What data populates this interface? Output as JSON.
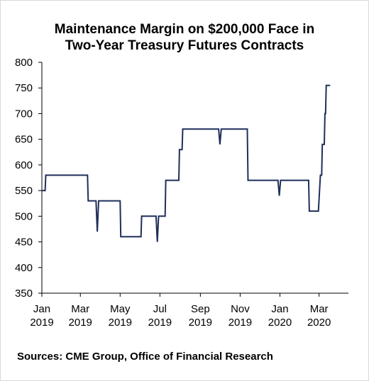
{
  "title_lines": [
    "Maintenance Margin on $200,000 Face in",
    "Two-Year Treasury Futures Contracts"
  ],
  "source_text": "Sources: CME Group, Office of Financial Research",
  "colors": {
    "line": "#1f2f5a",
    "axis": "#000000",
    "background": "#ffffff"
  },
  "chart_data": {
    "type": "line",
    "title": "Maintenance Margin on $200,000 Face in Two-Year Treasury Futures Contracts",
    "xlabel": "",
    "ylabel": "",
    "xlim": [
      "2019-01-01",
      "2020-04-15"
    ],
    "ylim": [
      350,
      800
    ],
    "grid": false,
    "legend": "none",
    "yticks": [
      350,
      400,
      450,
      500,
      550,
      600,
      650,
      700,
      750,
      800
    ],
    "xticks": [
      {
        "date": "2019-01-01",
        "line1": "Jan",
        "line2": "2019"
      },
      {
        "date": "2019-03-01",
        "line1": "Mar",
        "line2": "2019"
      },
      {
        "date": "2019-05-01",
        "line1": "May",
        "line2": "2019"
      },
      {
        "date": "2019-07-01",
        "line1": "Jul",
        "line2": "2019"
      },
      {
        "date": "2019-09-01",
        "line1": "Sep",
        "line2": "2019"
      },
      {
        "date": "2019-11-01",
        "line1": "Nov",
        "line2": "2019"
      },
      {
        "date": "2020-01-01",
        "line1": "Jan",
        "line2": "2020"
      },
      {
        "date": "2020-03-01",
        "line1": "Mar",
        "line2": "2020"
      }
    ],
    "series": [
      {
        "points": [
          [
            "2019-01-01",
            550
          ],
          [
            "2019-01-06",
            550
          ],
          [
            "2019-01-07",
            580
          ],
          [
            "2019-03-12",
            580
          ],
          [
            "2019-03-13",
            530
          ],
          [
            "2019-03-25",
            530
          ],
          [
            "2019-03-27",
            470
          ],
          [
            "2019-03-29",
            530
          ],
          [
            "2019-05-01",
            530
          ],
          [
            "2019-05-02",
            460
          ],
          [
            "2019-06-02",
            460
          ],
          [
            "2019-06-03",
            500
          ],
          [
            "2019-06-25",
            500
          ],
          [
            "2019-06-27",
            450
          ],
          [
            "2019-06-29",
            500
          ],
          [
            "2019-07-09",
            500
          ],
          [
            "2019-07-10",
            570
          ],
          [
            "2019-07-30",
            570
          ],
          [
            "2019-07-31",
            630
          ],
          [
            "2019-08-04",
            630
          ],
          [
            "2019-08-05",
            670
          ],
          [
            "2019-09-29",
            670
          ],
          [
            "2019-10-01",
            640
          ],
          [
            "2019-10-03",
            670
          ],
          [
            "2019-11-12",
            670
          ],
          [
            "2019-11-13",
            570
          ],
          [
            "2019-12-29",
            570
          ],
          [
            "2019-12-31",
            540
          ],
          [
            "2020-01-02",
            570
          ],
          [
            "2020-02-14",
            570
          ],
          [
            "2020-02-15",
            510
          ],
          [
            "2020-02-29",
            510
          ],
          [
            "2020-03-03",
            580
          ],
          [
            "2020-03-05",
            580
          ],
          [
            "2020-03-06",
            640
          ],
          [
            "2020-03-09",
            640
          ],
          [
            "2020-03-10",
            700
          ],
          [
            "2020-03-11",
            700
          ],
          [
            "2020-03-12",
            755
          ],
          [
            "2020-03-18",
            755
          ]
        ]
      }
    ]
  }
}
